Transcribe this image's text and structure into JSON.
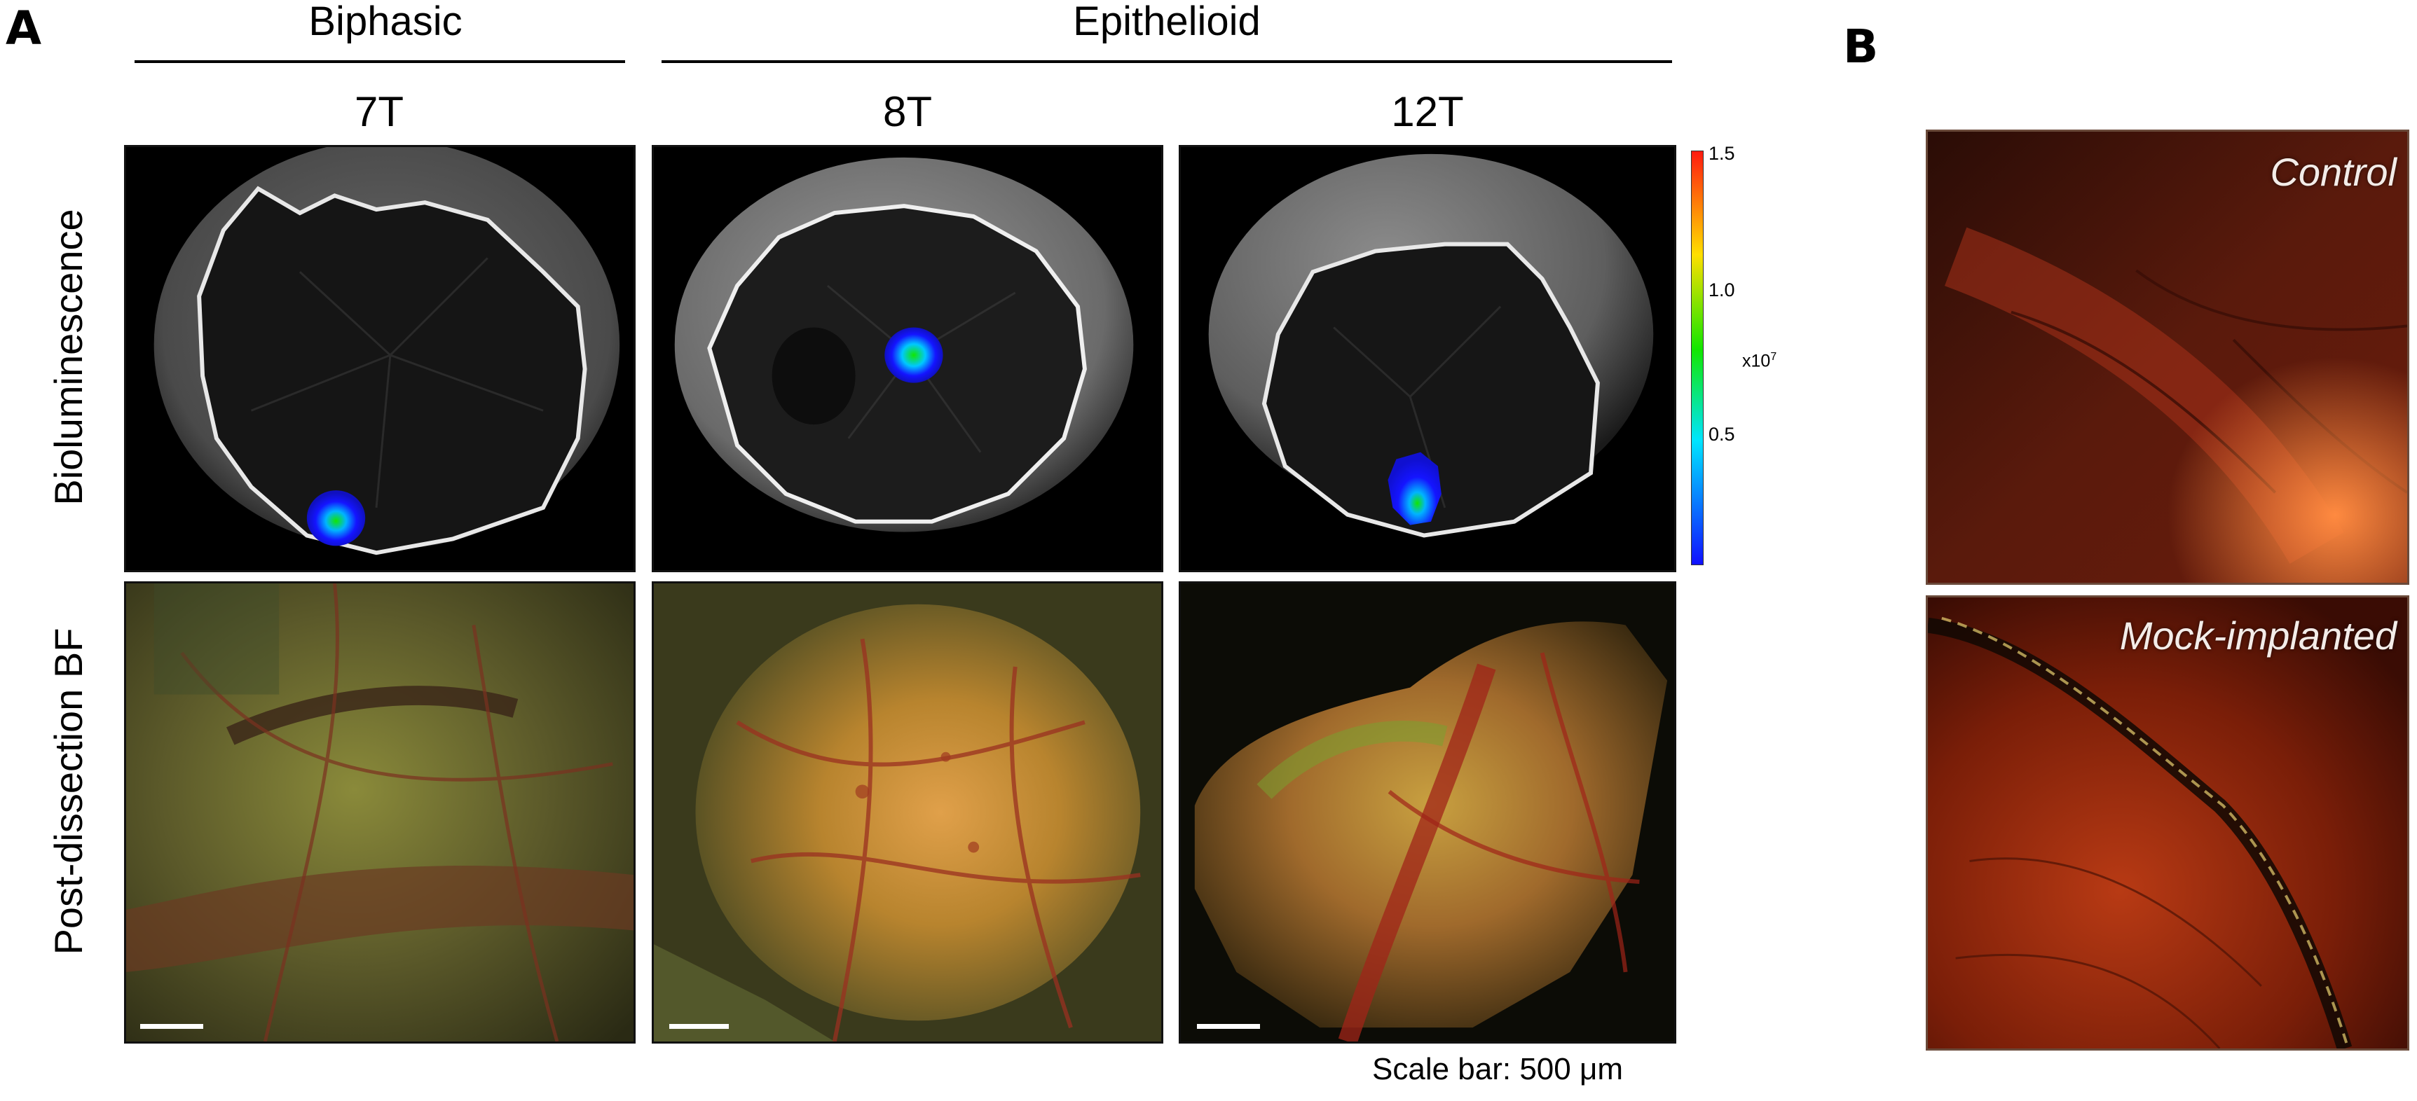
{
  "panel_a": {
    "letter": "A",
    "groups": [
      {
        "label": "Biphasic"
      },
      {
        "label": "Epithelioid"
      }
    ],
    "columns": [
      {
        "label": "7T"
      },
      {
        "label": "8T"
      },
      {
        "label": "12T"
      }
    ],
    "rows": [
      {
        "label": "Bioluminescence"
      },
      {
        "label": "Post-dissection BF"
      }
    ],
    "colorbar": {
      "ticks": [
        "1.5",
        "1.0",
        "0.5"
      ],
      "unit_base": "x10",
      "unit_exp": "7",
      "colors": [
        "#ff1a10",
        "#ffdf00",
        "#12e600",
        "#00e5ff",
        "#1010ff"
      ]
    },
    "scale_caption": "Scale bar: 500 μm"
  },
  "panel_b": {
    "letter": "B",
    "images": [
      {
        "caption": "Control"
      },
      {
        "caption": "Mock-implanted"
      }
    ]
  }
}
